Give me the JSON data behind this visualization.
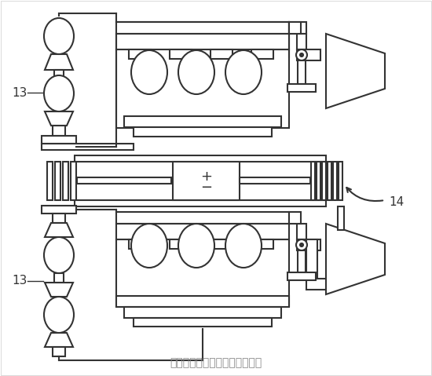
{
  "bg_color": "#ffffff",
  "line_color": "#333333",
  "lw": 1.5,
  "caption": "（图片来源：美国专利商标局）",
  "caption_color": "#888888",
  "caption_fontsize": 10,
  "label_13_top": "13",
  "label_13_bot": "13",
  "label_14": "14"
}
